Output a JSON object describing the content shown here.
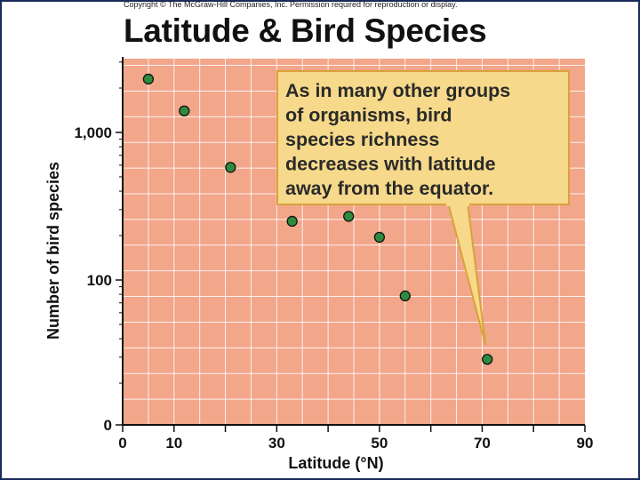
{
  "copyright": "Copyright © The McGraw-Hill Companies, Inc. Permission required for reproduction or display.",
  "colors": {
    "plot_background": "#f2a68a",
    "grid": "#ffffff",
    "point_fill": "#2e8b3e",
    "callout_fill": "#f6d98a",
    "callout_border": "#d9a23a"
  },
  "chart_data": {
    "type": "scatter",
    "title": "Latitude & Bird Species",
    "xlabel": "Latitude (°N)",
    "ylabel": "Number of bird species",
    "x_scale": "linear",
    "y_scale": "log",
    "xlim": [
      0,
      90
    ],
    "x_ticks": [
      0,
      10,
      30,
      50,
      70,
      90
    ],
    "y_ticks": [
      {
        "value": 1000,
        "label": "1,000"
      },
      {
        "value": 100,
        "label": "100"
      },
      {
        "value": 0,
        "label": "0"
      }
    ],
    "grid": true,
    "points": [
      {
        "x": 5,
        "y": 2300
      },
      {
        "x": 12,
        "y": 1400
      },
      {
        "x": 21,
        "y": 580
      },
      {
        "x": 33,
        "y": 250
      },
      {
        "x": 44,
        "y": 270
      },
      {
        "x": 50,
        "y": 195
      },
      {
        "x": 55,
        "y": 78
      },
      {
        "x": 71,
        "y": 29
      }
    ],
    "annotation": {
      "lines": [
        "As in many other groups",
        "of organisms, bird",
        "species richness",
        "decreases with latitude",
        "away from the equator."
      ]
    }
  }
}
